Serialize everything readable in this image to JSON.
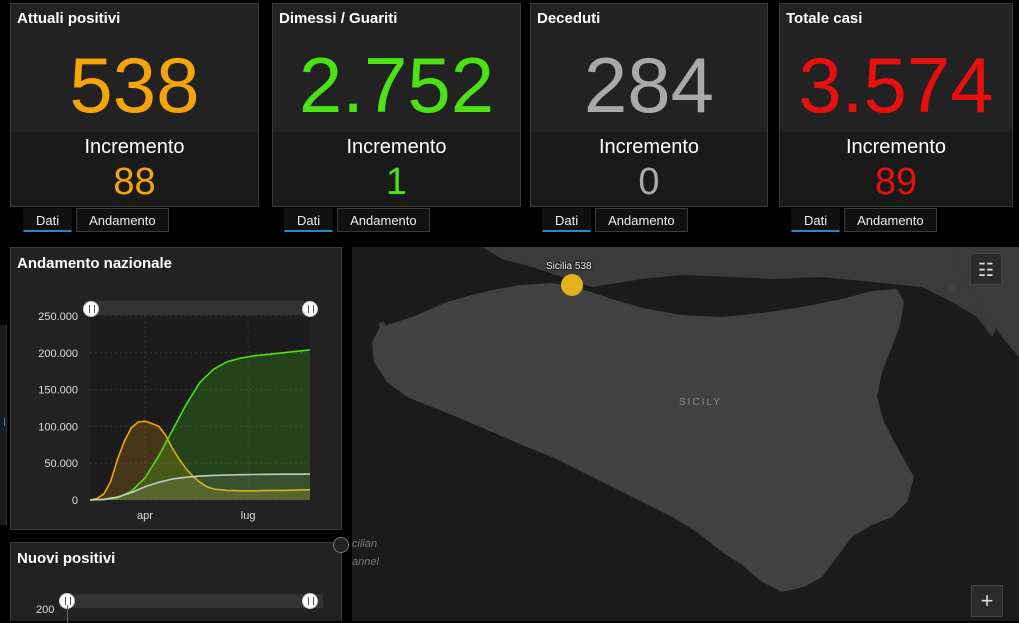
{
  "cards": [
    {
      "title": "Attuali positivi",
      "value": "538",
      "inc_label": "Incremento",
      "inc_value": "88",
      "color": "#f5a40c"
    },
    {
      "title": "Dimessi / Guariti",
      "value": "2.752",
      "inc_label": "Incremento",
      "inc_value": "1",
      "color": "#4be216"
    },
    {
      "title": "Deceduti",
      "value": "284",
      "inc_label": "Incremento",
      "inc_value": "0",
      "color": "#a9a9a9"
    },
    {
      "title": "Totale casi",
      "value": "3.574",
      "inc_label": "Incremento",
      "inc_value": "89",
      "color": "#e80f0f"
    }
  ],
  "tabs": {
    "dati": "Dati",
    "andamento": "Andamento"
  },
  "chart_panel": {
    "title": "Andamento nazionale"
  },
  "chart_data": {
    "type": "area",
    "y_ticks": [
      "250.000",
      "200.000",
      "150.000",
      "100.000",
      "50.000",
      "0"
    ],
    "x_ticks": [
      "apr",
      "lug"
    ],
    "ylim": [
      0,
      250000
    ],
    "grid": true,
    "series": [
      {
        "color": "#f5a40c",
        "x": [
          0,
          5,
          10,
          15,
          20,
          25,
          30,
          35,
          40,
          45,
          50,
          55,
          60,
          65,
          70,
          75,
          80,
          85,
          90,
          100,
          110,
          120,
          130,
          140,
          150,
          160
        ],
        "values": [
          0,
          2000,
          8000,
          25000,
          55000,
          80000,
          98000,
          106000,
          107000,
          104000,
          100000,
          88000,
          70000,
          55000,
          42000,
          32000,
          24000,
          18000,
          15000,
          13000,
          12500,
          12500,
          13000,
          13000,
          13500,
          14000
        ]
      },
      {
        "color": "#4be216",
        "x": [
          0,
          10,
          20,
          30,
          40,
          50,
          60,
          70,
          80,
          90,
          100,
          110,
          120,
          130,
          140,
          150,
          160
        ],
        "values": [
          0,
          500,
          3000,
          12000,
          30000,
          60000,
          95000,
          130000,
          160000,
          178000,
          188000,
          193000,
          196000,
          198000,
          200000,
          202000,
          204000
        ]
      },
      {
        "color": "#c8c8c8",
        "x": [
          0,
          10,
          20,
          30,
          40,
          50,
          60,
          70,
          80,
          90,
          100,
          110,
          120,
          130,
          140,
          150,
          160
        ],
        "values": [
          0,
          1000,
          4000,
          10000,
          18000,
          24000,
          28500,
          31000,
          32500,
          33400,
          34000,
          34400,
          34700,
          34900,
          35000,
          35100,
          35200
        ]
      }
    ]
  },
  "new_panel": {
    "title": "Nuovi positivi",
    "y_tick": "200"
  },
  "map": {
    "marker_label": "Sicilia 538",
    "region_label": "SICILY",
    "sea_label_1": "cilian",
    "sea_label_2": "annel",
    "zoom_in": "+",
    "list_icon": "☷"
  }
}
